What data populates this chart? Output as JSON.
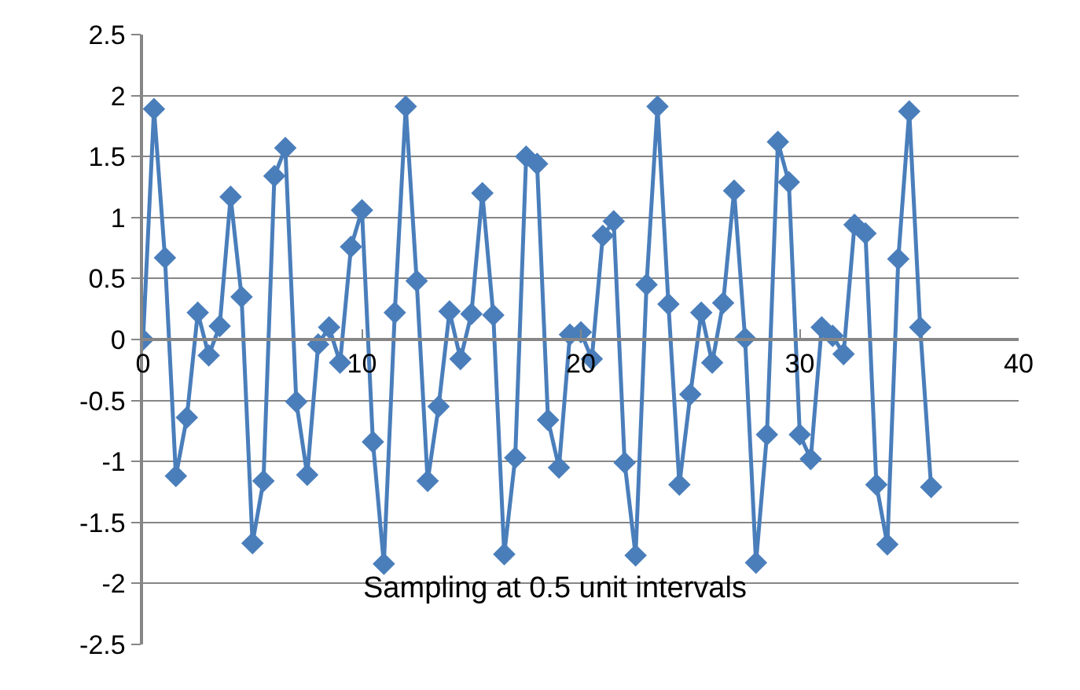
{
  "chart_data": {
    "type": "line",
    "x": [
      0,
      0.5,
      1,
      1.5,
      2,
      2.5,
      3,
      3.5,
      4,
      4.5,
      5,
      5.5,
      6,
      6.5,
      7,
      7.5,
      8,
      8.5,
      9,
      9.5,
      10,
      10.5,
      11,
      11.5,
      12,
      12.5,
      13,
      13.5,
      14,
      14.5,
      15,
      15.5,
      16,
      16.5,
      17,
      17.5,
      18,
      18.5,
      19,
      19.5,
      20,
      20.5,
      21,
      21.5,
      22,
      22.5,
      23,
      23.5,
      24,
      24.5,
      25,
      25.5,
      26,
      26.5,
      27,
      27.5,
      28,
      28.5,
      29,
      29.5,
      30,
      30.5,
      31,
      31.5,
      32,
      32.5,
      33,
      33.5,
      34,
      34.5,
      35,
      35.5,
      36
    ],
    "series": [
      {
        "color": "#4a7ebb",
        "values": [
          0,
          1.89,
          0.67,
          -1.12,
          -0.64,
          0.22,
          -0.13,
          0.11,
          1.17,
          0.35,
          -1.67,
          -1.16,
          1.34,
          1.57,
          -0.51,
          -1.11,
          -0.04,
          0.1,
          -0.19,
          0.76,
          1.06,
          -0.84,
          -1.84,
          0.22,
          1.91,
          0.48,
          -1.16,
          -0.55,
          0.23,
          -0.16,
          0.21,
          1.2,
          0.2,
          -1.76,
          -0.97,
          1.5,
          1.44,
          -0.66,
          -1.05,
          0.04,
          0.06,
          -0.16,
          0.85,
          0.97,
          -1.01,
          -1.77,
          0.45,
          1.91,
          0.29,
          -1.19,
          -0.45,
          0.22,
          -0.19,
          0.3,
          1.22,
          0.01,
          -1.83,
          -0.78,
          1.62,
          1.29,
          -0.78,
          -0.98,
          0.1,
          0.03,
          -0.12,
          0.94,
          0.87,
          -1.19,
          -1.68,
          0.66,
          1.87,
          0.1,
          -1.21
        ]
      }
    ],
    "xlim": [
      0,
      40
    ],
    "xticks": [
      0,
      10,
      20,
      30,
      40
    ],
    "ylim": [
      -2.5,
      2.5
    ],
    "yticks": [
      -2.5,
      -2,
      -1.5,
      -1,
      -0.5,
      0,
      0.5,
      1,
      1.5,
      2,
      2.5
    ],
    "grid": "y",
    "marker": "diamond",
    "line_style": "solid",
    "annotations": [
      "Sampling at 0.5 unit intervals"
    ]
  }
}
